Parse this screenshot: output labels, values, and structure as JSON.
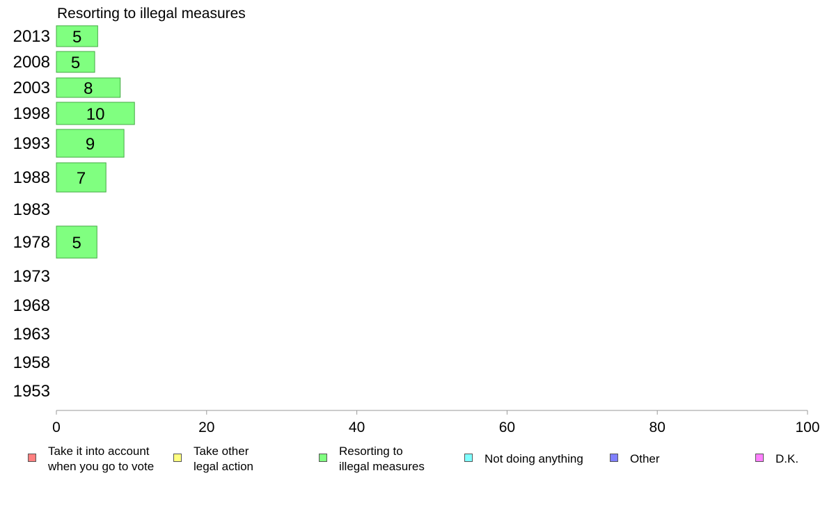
{
  "chart_data": {
    "type": "bar",
    "orientation": "horizontal",
    "title": "Resorting to illegal measures",
    "categories": [
      "2013",
      "2008",
      "2003",
      "1998",
      "1993",
      "1988",
      "1983",
      "1978",
      "1973",
      "1968",
      "1963",
      "1958",
      "1953"
    ],
    "values": [
      5,
      5,
      8,
      10,
      9,
      7,
      null,
      5,
      null,
      null,
      null,
      null,
      null
    ],
    "exact_values": [
      5.5,
      5.1,
      8.5,
      10.4,
      9.0,
      6.6,
      null,
      5.4,
      null,
      null,
      null,
      null,
      null
    ],
    "xlim": [
      0,
      100
    ],
    "xticks": [
      "0",
      "20",
      "40",
      "60",
      "80",
      "100"
    ],
    "grid": false,
    "bar_color": "#80ff80",
    "bar_edge_color": "#44aa44",
    "legend_position": "bottom",
    "legend": [
      {
        "label": "Take it into account\nwhen you go to vote",
        "color": "#ff8080"
      },
      {
        "label": "Take other\nlegal action",
        "color": "#ffff80"
      },
      {
        "label": "Resorting to\nillegal measures",
        "color": "#80ff80"
      },
      {
        "label": "Not doing anything",
        "color": "#80ffff"
      },
      {
        "label": "Other",
        "color": "#8080ff"
      },
      {
        "label": "D.K.",
        "color": "#ff80ff"
      }
    ]
  }
}
